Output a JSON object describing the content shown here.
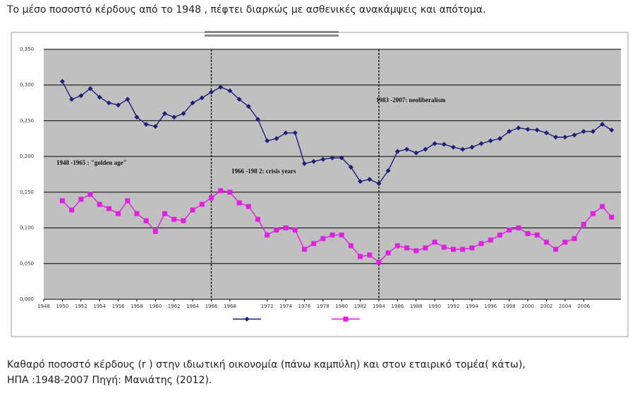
{
  "header": {
    "caption": "Το μέσο ποσοστό κέρδους από το 1948 , πέφτει διαρκώς με ασθενικές ανακάμψεις  και απότομα."
  },
  "chart_data": {
    "type": "line",
    "x": [
      1950,
      1951,
      1952,
      1953,
      1954,
      1955,
      1956,
      1957,
      1958,
      1959,
      1960,
      1961,
      1962,
      1963,
      1964,
      1965,
      1966,
      1967,
      1968,
      1969,
      1970,
      1971,
      1972,
      1973,
      1974,
      1975,
      1976,
      1977,
      1978,
      1979,
      1980,
      1981,
      1982,
      1983,
      1984,
      1985,
      1986,
      1987,
      1988,
      1989,
      1990,
      1991,
      1992,
      1993,
      1994,
      1995,
      1996,
      1997,
      1998,
      1999,
      2000,
      2001,
      2002,
      2003,
      2004,
      2005,
      2006,
      2007,
      2008,
      2009
    ],
    "series": [
      {
        "color": "#1f1f78",
        "marker": "diamond",
        "values": [
          0.305,
          0.28,
          0.285,
          0.295,
          0.283,
          0.275,
          0.272,
          0.28,
          0.255,
          0.245,
          0.242,
          0.26,
          0.255,
          0.26,
          0.275,
          0.282,
          0.29,
          0.297,
          0.292,
          0.28,
          0.27,
          0.252,
          0.222,
          0.225,
          0.233,
          0.233,
          0.19,
          0.193,
          0.196,
          0.198,
          0.198,
          0.185,
          0.165,
          0.168,
          0.162,
          0.18,
          0.207,
          0.21,
          0.205,
          0.21,
          0.218,
          0.217,
          0.213,
          0.21,
          0.213,
          0.218,
          0.222,
          0.225,
          0.235,
          0.24,
          0.238,
          0.237,
          0.233,
          0.227,
          0.227,
          0.23,
          0.235,
          0.235,
          0.245,
          0.237
        ]
      },
      {
        "color": "#e020e0",
        "marker": "square",
        "values": [
          0.138,
          0.125,
          0.14,
          0.147,
          0.133,
          0.127,
          0.12,
          0.138,
          0.12,
          0.11,
          0.095,
          0.12,
          0.112,
          0.11,
          0.125,
          0.133,
          0.142,
          0.152,
          0.15,
          0.135,
          0.13,
          0.112,
          0.09,
          0.097,
          0.1,
          0.097,
          0.07,
          0.078,
          0.085,
          0.09,
          0.09,
          0.075,
          0.06,
          0.062,
          0.052,
          0.065,
          0.075,
          0.072,
          0.068,
          0.072,
          0.08,
          0.073,
          0.07,
          0.07,
          0.072,
          0.078,
          0.083,
          0.09,
          0.097,
          0.1,
          0.092,
          0.09,
          0.08,
          0.07,
          0.08,
          0.085,
          0.105,
          0.12,
          0.13,
          0.115
        ]
      }
    ],
    "xlim": [
      1948,
      2010
    ],
    "xticks": [
      1948,
      1950,
      1952,
      1954,
      1956,
      1958,
      1960,
      1962,
      1964,
      1966,
      1968,
      1972,
      1974,
      1976,
      1978,
      1980,
      1982,
      1984,
      1986,
      1988,
      1990,
      1992,
      1994,
      1996,
      1998,
      2000,
      2002,
      2004,
      2006
    ],
    "ylim": [
      0,
      0.35
    ],
    "yticks": [
      {
        "value": 0,
        "label": "0,000"
      },
      {
        "value": 0.05,
        "label": "0,050"
      },
      {
        "value": 0.1,
        "label": "0,100"
      },
      {
        "value": 0.15,
        "label": "0,150"
      },
      {
        "value": 0.2,
        "label": "0,200"
      },
      {
        "value": 0.25,
        "label": "0,250"
      },
      {
        "value": 0.3,
        "label": "0,300"
      },
      {
        "value": 0.35,
        "label": "0,350"
      }
    ],
    "grid": true,
    "vlines": [
      1966,
      1984
    ],
    "annotations": [
      "1983  -2007: neoliberalism",
      "1948  -1965  : \"golden age\"",
      "1966  -198 2: crisis years"
    ]
  },
  "footer": {
    "lines": [
      "Καθαρό ποσοστό κέρδους (r ) στην ιδιωτική  οικονομία  (πάνω καμπύλη) και στον εταιρικό τομέα( κάτω),",
      "ΗΠΑ :1948-2007  Πηγή: Μανιάτης (2012)."
    ]
  }
}
